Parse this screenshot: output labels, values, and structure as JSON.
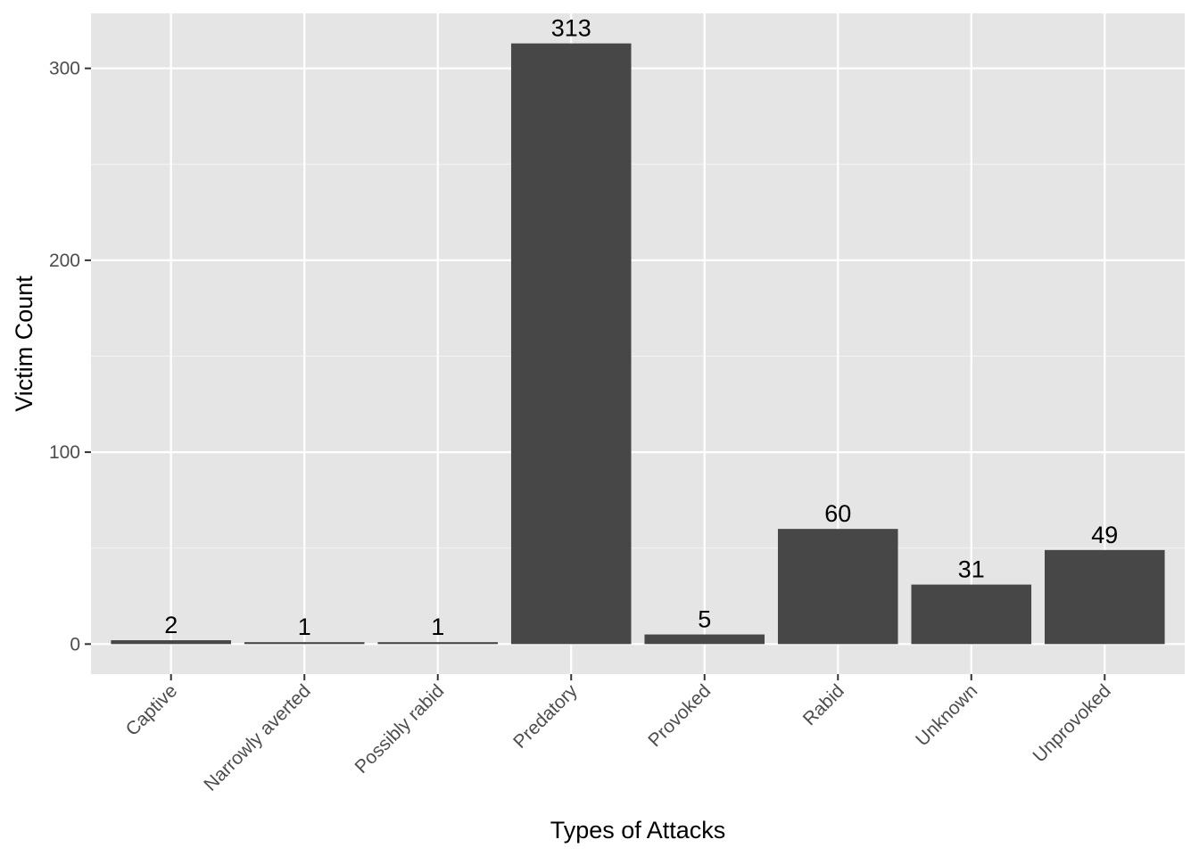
{
  "chart_data": {
    "type": "bar",
    "title": "",
    "xlabel": "Types of Attacks",
    "ylabel": "Victim Count",
    "categories": [
      "Captive",
      "Narrowly averted",
      "Possibly rabid",
      "Predatory",
      "Provoked",
      "Rabid",
      "Unknown",
      "Unprovoked"
    ],
    "values": [
      2,
      1,
      1,
      313,
      5,
      60,
      31,
      49
    ],
    "value_labels": [
      "2",
      "1",
      "1",
      "313",
      "5",
      "60",
      "31",
      "49"
    ],
    "ylim": [
      -15.65,
      328.65
    ],
    "y_ticks": [
      0,
      100,
      200,
      300
    ],
    "y_tick_labels": [
      "0",
      "100",
      "200",
      "300"
    ],
    "grid": true,
    "legend": "none",
    "colors": {
      "bar": "#474747",
      "panel_background": "#e5e5e5",
      "grid": "#ffffff",
      "tick_text": "#4d4d4d",
      "title_text": "#000000"
    }
  }
}
